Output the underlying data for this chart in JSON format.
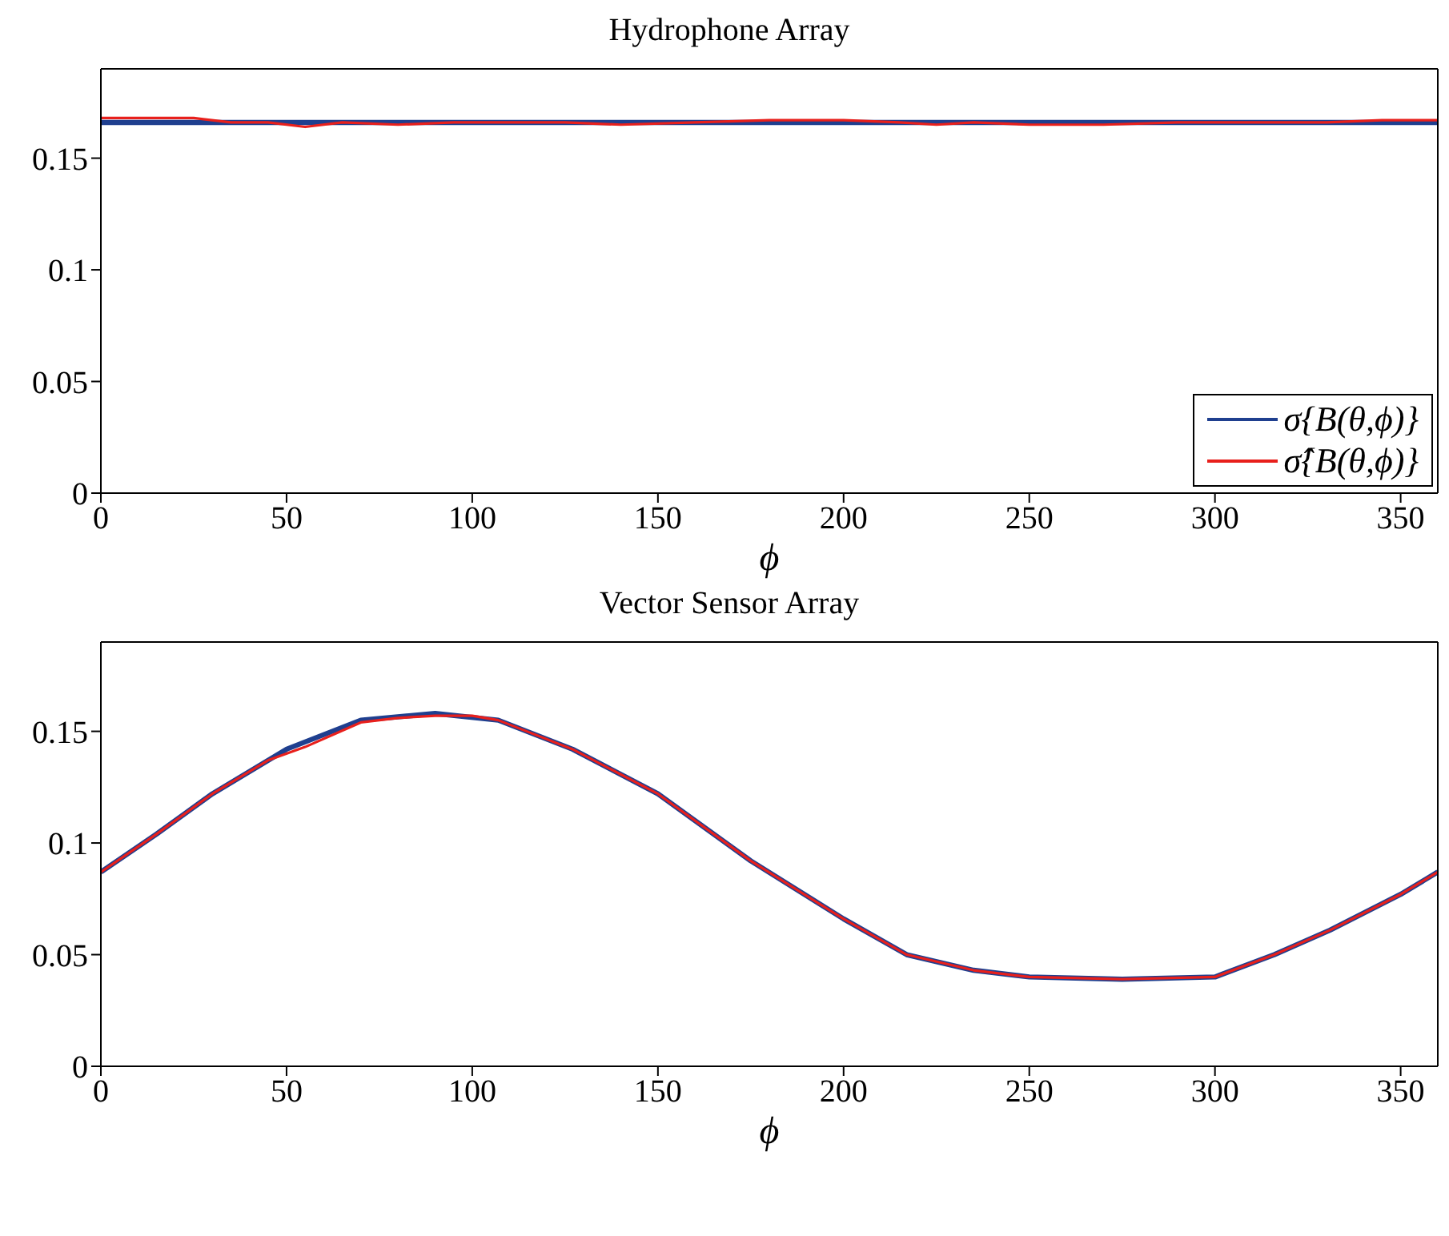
{
  "chart_data": [
    {
      "type": "line",
      "title": "Hydrophone Array",
      "xlabel": "ϕ",
      "xlim": [
        0,
        360
      ],
      "xticks": [
        0,
        50,
        100,
        150,
        200,
        250,
        300,
        350
      ],
      "ylim": [
        0,
        0.19
      ],
      "yticks": [
        0,
        0.05,
        0.1,
        0.15
      ],
      "legend": "bottom right",
      "series": [
        {
          "name": "σ{B(θ,ϕ)}",
          "color": "#1f3f8f",
          "x": [
            0,
            360
          ],
          "values": [
            0.166,
            0.166
          ]
        },
        {
          "name": "σ̂{B(θ,ϕ)}",
          "color": "#e8201c",
          "x": [
            0,
            25,
            35,
            45,
            55,
            65,
            80,
            95,
            110,
            125,
            140,
            160,
            180,
            200,
            215,
            225,
            235,
            250,
            270,
            290,
            310,
            330,
            345,
            360
          ],
          "values": [
            0.168,
            0.168,
            0.166,
            0.166,
            0.164,
            0.166,
            0.165,
            0.166,
            0.166,
            0.166,
            0.165,
            0.166,
            0.167,
            0.167,
            0.166,
            0.165,
            0.166,
            0.165,
            0.165,
            0.166,
            0.166,
            0.166,
            0.167,
            0.167
          ]
        }
      ]
    },
    {
      "type": "line",
      "title": "Vector Sensor Array",
      "xlabel": "ϕ",
      "xlim": [
        0,
        360
      ],
      "xticks": [
        0,
        50,
        100,
        150,
        200,
        250,
        300,
        350
      ],
      "ylim": [
        0,
        0.19
      ],
      "yticks": [
        0,
        0.05,
        0.1,
        0.15
      ],
      "legend": false,
      "series": [
        {
          "color": "#1f3f8f",
          "x": [
            0,
            15,
            30,
            50,
            70,
            90,
            107,
            127,
            150,
            175,
            200,
            217,
            235,
            250,
            275,
            300,
            316,
            331,
            350,
            360
          ],
          "values": [
            0.087,
            0.104,
            0.122,
            0.142,
            0.155,
            0.158,
            0.155,
            0.142,
            0.122,
            0.092,
            0.066,
            0.05,
            0.043,
            0.04,
            0.039,
            0.04,
            0.05,
            0.061,
            0.077,
            0.087
          ]
        },
        {
          "color": "#e8201c",
          "x": [
            0,
            15,
            30,
            45,
            55,
            70,
            80,
            90,
            100,
            107,
            127,
            150,
            175,
            200,
            217,
            235,
            250,
            275,
            300,
            316,
            331,
            350,
            360
          ],
          "values": [
            0.087,
            0.104,
            0.122,
            0.137,
            0.143,
            0.154,
            0.156,
            0.157,
            0.157,
            0.155,
            0.142,
            0.122,
            0.092,
            0.066,
            0.05,
            0.043,
            0.04,
            0.039,
            0.04,
            0.05,
            0.061,
            0.077,
            0.087
          ]
        }
      ]
    }
  ]
}
